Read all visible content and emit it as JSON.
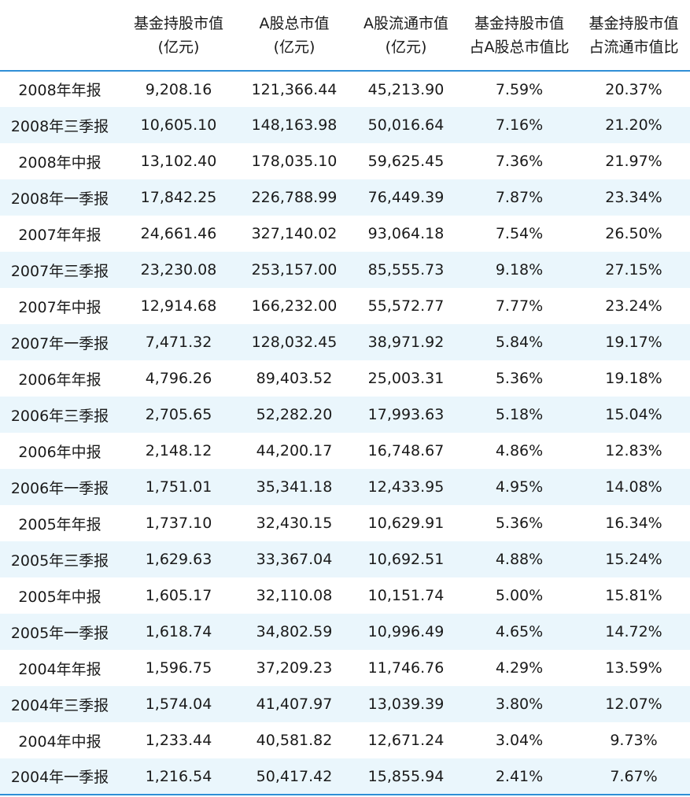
{
  "table": {
    "header": [
      [
        "基金持股市值",
        "(亿元)"
      ],
      [
        "A股总市值",
        "(亿元)"
      ],
      [
        "A股流通市值",
        "(亿元)"
      ],
      [
        "基金持股市值",
        "占A股总市值比"
      ],
      [
        "基金持股市值",
        "占流通市值比"
      ]
    ],
    "rows": [
      [
        "2008年年报",
        "9,208.16",
        "121,366.44",
        "45,213.90",
        "7.59%",
        "20.37%"
      ],
      [
        "2008年三季报",
        "10,605.10",
        "148,163.98",
        "50,016.64",
        "7.16%",
        "21.20%"
      ],
      [
        "2008年中报",
        "13,102.40",
        "178,035.10",
        "59,625.45",
        "7.36%",
        "21.97%"
      ],
      [
        "2008年一季报",
        "17,842.25",
        "226,788.99",
        "76,449.39",
        "7.87%",
        "23.34%"
      ],
      [
        "2007年年报",
        "24,661.46",
        "327,140.02",
        "93,064.18",
        "7.54%",
        "26.50%"
      ],
      [
        "2007年三季报",
        "23,230.08",
        "253,157.00",
        "85,555.73",
        "9.18%",
        "27.15%"
      ],
      [
        "2007年中报",
        "12,914.68",
        "166,232.00",
        "55,572.77",
        "7.77%",
        "23.24%"
      ],
      [
        "2007年一季报",
        "7,471.32",
        "128,032.45",
        "38,971.92",
        "5.84%",
        "19.17%"
      ],
      [
        "2006年年报",
        "4,796.26",
        "89,403.52",
        "25,003.31",
        "5.36%",
        "19.18%"
      ],
      [
        "2006年三季报",
        "2,705.65",
        "52,282.20",
        "17,993.63",
        "5.18%",
        "15.04%"
      ],
      [
        "2006年中报",
        "2,148.12",
        "44,200.17",
        "16,748.67",
        "4.86%",
        "12.83%"
      ],
      [
        "2006年一季报",
        "1,751.01",
        "35,341.18",
        "12,433.95",
        "4.95%",
        "14.08%"
      ],
      [
        "2005年年报",
        "1,737.10",
        "32,430.15",
        "10,629.91",
        "5.36%",
        "16.34%"
      ],
      [
        "2005年三季报",
        "1,629.63",
        "33,367.04",
        "10,692.51",
        "4.88%",
        "15.24%"
      ],
      [
        "2005年中报",
        "1,605.17",
        "32,110.08",
        "10,151.74",
        "5.00%",
        "15.81%"
      ],
      [
        "2005年一季报",
        "1,618.74",
        "34,802.59",
        "10,996.49",
        "4.65%",
        "14.72%"
      ],
      [
        "2004年年报",
        "1,596.75",
        "37,209.23",
        "11,746.76",
        "4.29%",
        "13.59%"
      ],
      [
        "2004年三季报",
        "1,574.04",
        "41,407.97",
        "13,039.39",
        "3.80%",
        "12.07%"
      ],
      [
        "2004年中报",
        "1,233.44",
        "40,581.82",
        "12,671.24",
        "3.04%",
        "9.73%"
      ],
      [
        "2004年一季报",
        "1,216.54",
        "50,417.42",
        "15,855.94",
        "2.41%",
        "7.67%"
      ]
    ]
  }
}
